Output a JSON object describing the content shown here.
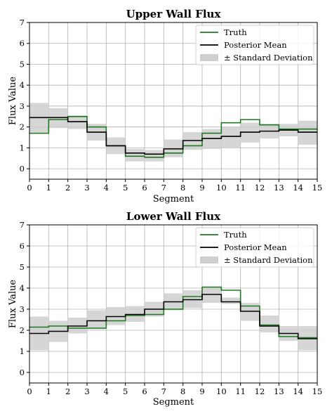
{
  "chart_data": [
    {
      "type": "line",
      "title": "Upper Wall Flux",
      "xlabel": "Segment",
      "ylabel": "Flux Value",
      "xlim": [
        0,
        15
      ],
      "ylim": [
        -0.5,
        7
      ],
      "xticks": [
        "0",
        "1",
        "2",
        "3",
        "4",
        "5",
        "6",
        "7",
        "8",
        "9",
        "10",
        "11",
        "12",
        "13",
        "14",
        "15"
      ],
      "yticks": [
        "0",
        "1",
        "2",
        "3",
        "4",
        "5",
        "6",
        "7"
      ],
      "grid": true,
      "legend_position": "top-right",
      "x": [
        0,
        1,
        2,
        3,
        4,
        5,
        6,
        7,
        8,
        9,
        10,
        11,
        12,
        13,
        14
      ],
      "series": [
        {
          "name": "Truth",
          "color": "#1f7a1f",
          "style": "step",
          "values": [
            1.7,
            2.35,
            2.5,
            2.0,
            1.1,
            0.6,
            0.55,
            0.75,
            1.1,
            1.7,
            2.2,
            2.35,
            2.1,
            1.9,
            1.9
          ]
        },
        {
          "name": "Posterior Mean",
          "color": "#000000",
          "style": "step",
          "values": [
            2.45,
            2.45,
            2.25,
            1.75,
            1.1,
            0.75,
            0.7,
            0.95,
            1.35,
            1.45,
            1.55,
            1.75,
            1.8,
            1.85,
            1.75
          ]
        },
        {
          "name": "± Standard Deviation",
          "color": "#cfcfcf",
          "style": "band",
          "lower": [
            1.75,
            1.95,
            1.9,
            1.35,
            0.7,
            0.35,
            0.35,
            0.55,
            0.9,
            0.95,
            1.0,
            1.25,
            1.45,
            1.55,
            1.15
          ],
          "upper": [
            3.15,
            2.9,
            2.55,
            2.15,
            1.5,
            0.95,
            0.9,
            1.4,
            1.75,
            1.9,
            2.0,
            2.2,
            2.15,
            2.15,
            2.3
          ]
        }
      ]
    },
    {
      "type": "line",
      "title": "Lower Wall Flux",
      "xlabel": "Segment",
      "ylabel": "Flux Value",
      "xlim": [
        0,
        15
      ],
      "ylim": [
        -0.5,
        7
      ],
      "xticks": [
        "0",
        "1",
        "2",
        "3",
        "4",
        "5",
        "6",
        "7",
        "8",
        "9",
        "10",
        "11",
        "12",
        "13",
        "14",
        "15"
      ],
      "yticks": [
        "0",
        "1",
        "2",
        "3",
        "4",
        "5",
        "6",
        "7"
      ],
      "grid": true,
      "legend_position": "top-right",
      "x": [
        0,
        1,
        2,
        3,
        4,
        5,
        6,
        7,
        8,
        9,
        10,
        11,
        12,
        13,
        14
      ],
      "series": [
        {
          "name": "Truth",
          "color": "#1f7a1f",
          "style": "step",
          "values": [
            2.15,
            2.2,
            2.1,
            2.1,
            2.45,
            2.7,
            2.75,
            3.0,
            3.6,
            4.05,
            3.9,
            3.15,
            2.25,
            1.7,
            1.65
          ]
        },
        {
          "name": "Posterior Mean",
          "color": "#000000",
          "style": "step",
          "values": [
            1.85,
            1.95,
            2.2,
            2.45,
            2.65,
            2.75,
            3.0,
            3.35,
            3.45,
            3.7,
            3.35,
            2.9,
            2.2,
            1.85,
            1.6
          ]
        },
        {
          "name": "± Standard Deviation",
          "color": "#cfcfcf",
          "style": "band",
          "lower": [
            1.05,
            1.45,
            1.85,
            2.05,
            2.25,
            2.4,
            2.65,
            2.95,
            3.05,
            3.3,
            3.25,
            2.45,
            1.9,
            1.5,
            1.05
          ],
          "upper": [
            2.65,
            2.45,
            2.6,
            2.95,
            3.1,
            3.15,
            3.35,
            3.75,
            3.9,
            4.05,
            3.55,
            3.3,
            2.7,
            2.2,
            2.2
          ]
        }
      ]
    }
  ]
}
